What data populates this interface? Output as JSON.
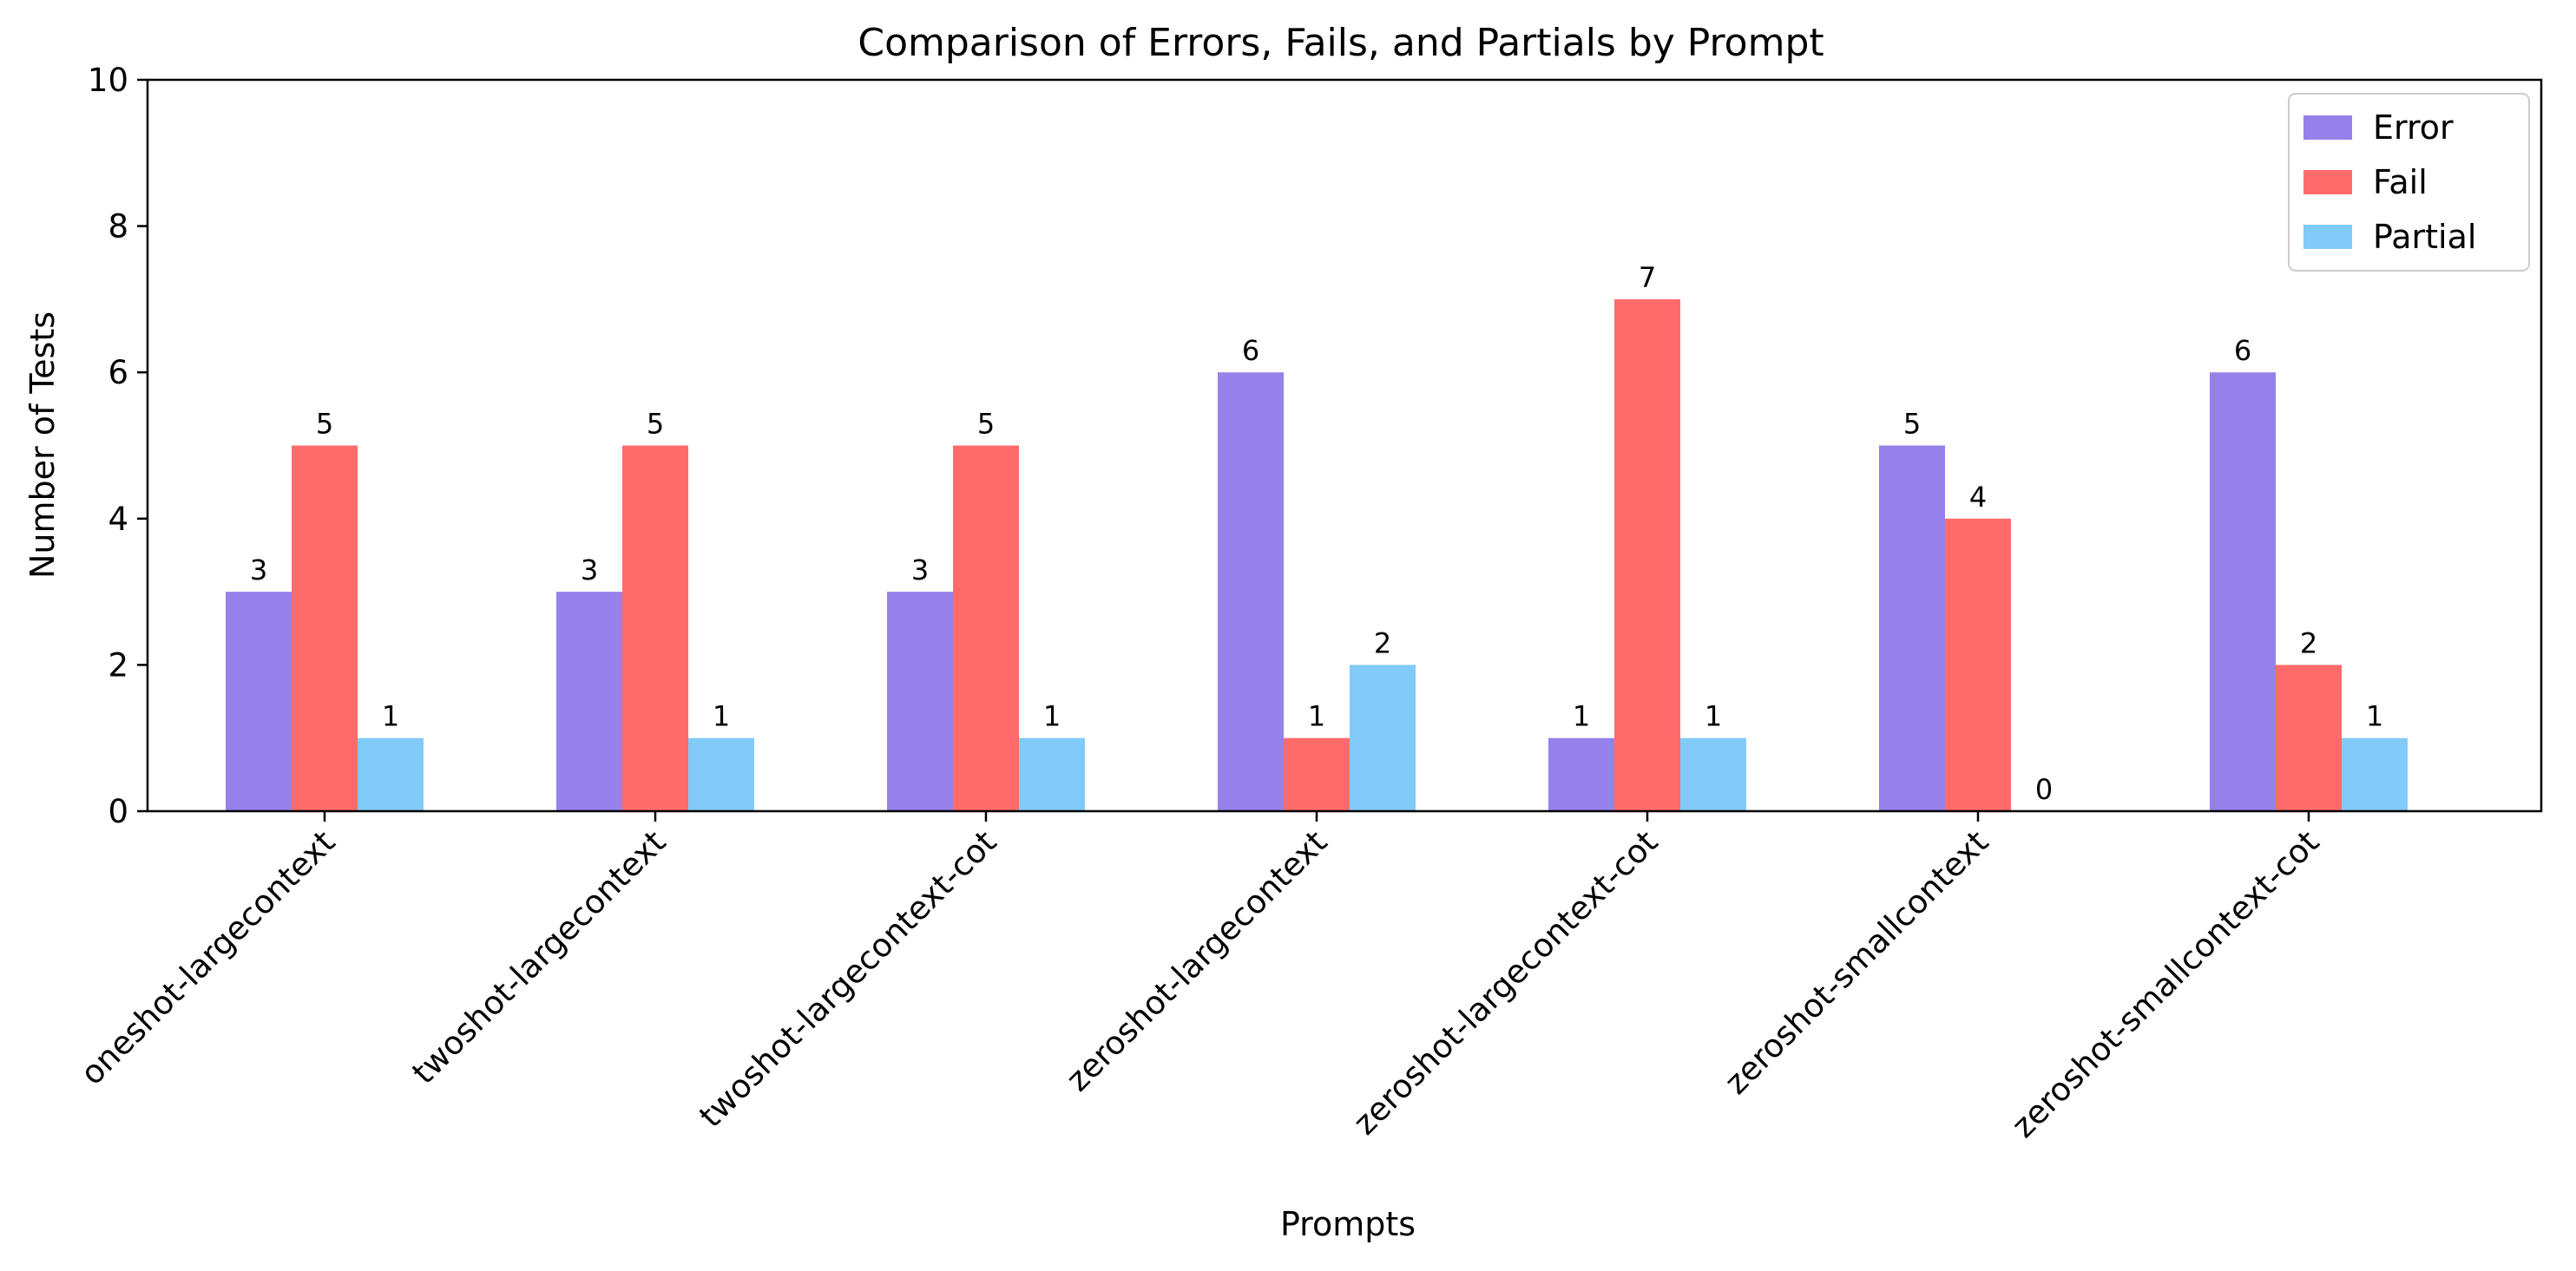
{
  "chart_data": {
    "type": "bar",
    "title": "Comparison of Errors, Fails, and Partials by Prompt",
    "xlabel": "Prompts",
    "ylabel": "Number of Tests",
    "ylim": [
      0,
      10
    ],
    "yticks": [
      0,
      2,
      4,
      6,
      8,
      10
    ],
    "grid": false,
    "legend_position": "top-right",
    "categories": [
      "oneshot-largecontext",
      "twoshot-largecontext",
      "twoshot-largecontext-cot",
      "zeroshot-largecontext",
      "zeroshot-largecontext-cot",
      "zeroshot-smallcontext",
      "zeroshot-smallcontext-cot"
    ],
    "series": [
      {
        "name": "Error",
        "color": "#9681eb",
        "values": [
          3,
          3,
          3,
          6,
          1,
          5,
          6
        ]
      },
      {
        "name": "Fail",
        "color": "#ff6b6b",
        "values": [
          5,
          5,
          5,
          1,
          7,
          4,
          2
        ]
      },
      {
        "name": "Partial",
        "color": "#82caf8",
        "values": [
          1,
          1,
          1,
          2,
          1,
          0,
          1
        ]
      }
    ]
  }
}
